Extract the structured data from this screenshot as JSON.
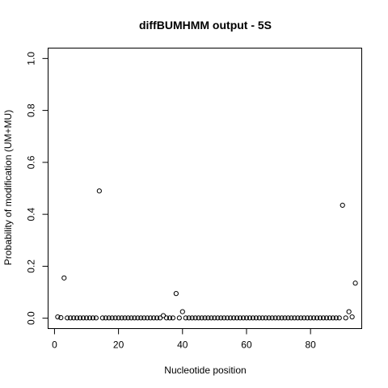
{
  "chart_data": {
    "type": "scatter",
    "title": "diffBUMHMM output - 5S",
    "xlabel": "Nucleotide position",
    "ylabel": "Probability of modification (UM+MU)",
    "xlim": [
      -2,
      96
    ],
    "ylim": [
      -0.04,
      1.04
    ],
    "xticks": [
      0,
      20,
      40,
      60,
      80
    ],
    "yticks": [
      0.0,
      0.2,
      0.4,
      0.6,
      0.8,
      1.0
    ],
    "xtick_labels": [
      "0",
      "20",
      "40",
      "60",
      "80"
    ],
    "ytick_labels": [
      "0.0",
      "0.2",
      "0.4",
      "0.6",
      "0.8",
      "1.0"
    ],
    "grid": false,
    "marker": "open-circle",
    "x": [
      1,
      2,
      3,
      4,
      5,
      6,
      7,
      8,
      9,
      10,
      11,
      12,
      13,
      14,
      15,
      16,
      17,
      18,
      19,
      20,
      21,
      22,
      23,
      24,
      25,
      26,
      27,
      28,
      29,
      30,
      31,
      32,
      33,
      34,
      35,
      36,
      37,
      38,
      39,
      40,
      41,
      42,
      43,
      44,
      45,
      46,
      47,
      48,
      49,
      50,
      51,
      52,
      53,
      54,
      55,
      56,
      57,
      58,
      59,
      60,
      61,
      62,
      63,
      64,
      65,
      66,
      67,
      68,
      69,
      70,
      71,
      72,
      73,
      74,
      75,
      76,
      77,
      78,
      79,
      80,
      81,
      82,
      83,
      84,
      85,
      86,
      87,
      88,
      89,
      90,
      91,
      92,
      93,
      94
    ],
    "y": [
      0.005,
      0.002,
      0.155,
      0.001,
      0.001,
      0.001,
      0.001,
      0.001,
      0.001,
      0.001,
      0.001,
      0.001,
      0.001,
      0.49,
      0.001,
      0.001,
      0.001,
      0.001,
      0.001,
      0.001,
      0.001,
      0.001,
      0.001,
      0.001,
      0.001,
      0.001,
      0.001,
      0.001,
      0.001,
      0.001,
      0.001,
      0.001,
      0.001,
      0.01,
      0.001,
      0.001,
      0.001,
      0.095,
      0.001,
      0.025,
      0.001,
      0.001,
      0.001,
      0.001,
      0.001,
      0.001,
      0.001,
      0.001,
      0.001,
      0.001,
      0.001,
      0.001,
      0.001,
      0.001,
      0.001,
      0.001,
      0.001,
      0.001,
      0.001,
      0.001,
      0.001,
      0.001,
      0.001,
      0.001,
      0.001,
      0.001,
      0.001,
      0.001,
      0.001,
      0.001,
      0.001,
      0.001,
      0.001,
      0.001,
      0.001,
      0.001,
      0.001,
      0.001,
      0.001,
      0.001,
      0.001,
      0.001,
      0.001,
      0.001,
      0.001,
      0.001,
      0.001,
      0.001,
      0.001,
      0.435,
      0.001,
      0.025,
      0.005,
      0.135
    ]
  }
}
